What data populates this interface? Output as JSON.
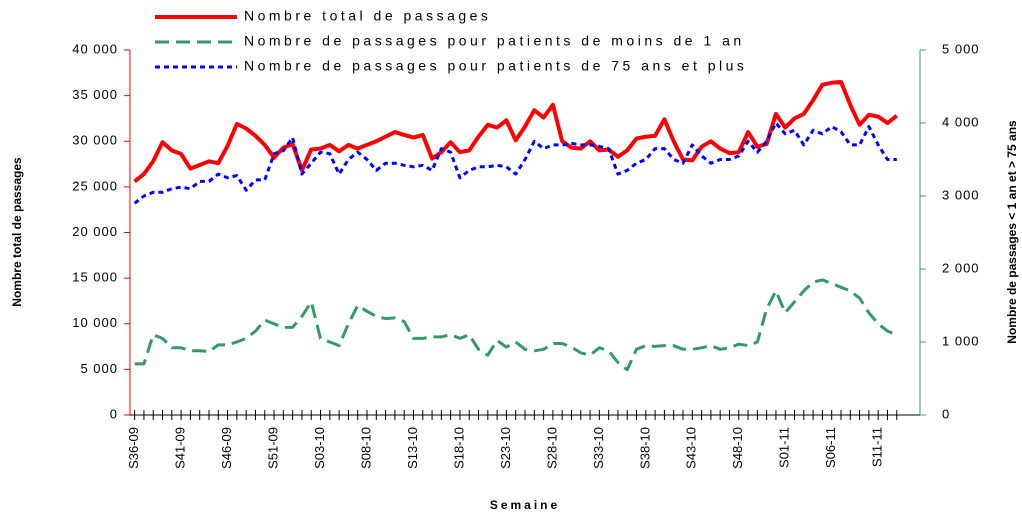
{
  "chart_data": {
    "type": "line",
    "ylabel": "Nombre total de passages",
    "y2label": "Nombre de passages < 1 an et > 75 ans",
    "xlabel": "Semaine",
    "categories": [
      "S36-09",
      null,
      null,
      null,
      null,
      "S41-09",
      null,
      null,
      null,
      null,
      "S46-09",
      null,
      null,
      null,
      null,
      "S51-09",
      null,
      null,
      null,
      null,
      "S03-10",
      null,
      null,
      null,
      null,
      "S08-10",
      null,
      null,
      null,
      null,
      "S13-10",
      null,
      null,
      null,
      null,
      "S18-10",
      null,
      null,
      null,
      null,
      "S23-10",
      null,
      null,
      null,
      null,
      "S28-10",
      null,
      null,
      null,
      null,
      "S33-10",
      null,
      null,
      null,
      null,
      "S38-10",
      null,
      null,
      null,
      null,
      "S43-10",
      null,
      null,
      null,
      null,
      "S48-10",
      null,
      null,
      null,
      null,
      "S01-11",
      null,
      null,
      null,
      null,
      "S06-11",
      null,
      null,
      null,
      null,
      "S11-11",
      null,
      null
    ],
    "series": [
      {
        "name": "Nombre total de passages",
        "color": "#ff0000",
        "axis": "y",
        "values": [
          25600,
          26400,
          27800,
          29900,
          29000,
          28600,
          27000,
          27400,
          27800,
          27600,
          29500,
          31900,
          31400,
          30600,
          29600,
          28200,
          29300,
          29700,
          26800,
          29100,
          29200,
          29600,
          28900,
          29600,
          29200,
          29600,
          30000,
          30500,
          31000,
          30700,
          30400,
          30700,
          28100,
          28800,
          29900,
          28800,
          29000,
          30500,
          31800,
          31500,
          32300,
          30100,
          31600,
          33400,
          32600,
          34000,
          30000,
          29300,
          29200,
          30000,
          29000,
          29100,
          28300,
          29000,
          30300,
          30500,
          30600,
          32400,
          30000,
          28000,
          27900,
          29400,
          30000,
          29200,
          28700,
          28800,
          31000,
          29400,
          29700,
          33000,
          31500,
          32500,
          33000,
          34500,
          36200,
          36400,
          36500,
          34000,
          31800,
          32900,
          32700,
          32000,
          32800
        ]
      },
      {
        "name": "Nombre de passages pour patients de moins de 1 an",
        "color": "#339966",
        "axis": "y2",
        "values": [
          700,
          700,
          1100,
          1050,
          920,
          920,
          880,
          880,
          870,
          960,
          960,
          1000,
          1050,
          1150,
          1300,
          1250,
          1200,
          1200,
          1350,
          1550,
          1050,
          1000,
          950,
          1250,
          1500,
          1420,
          1350,
          1320,
          1330,
          1280,
          1050,
          1050,
          1070,
          1070,
          1100,
          1050,
          1100,
          900,
          820,
          1020,
          930,
          1000,
          900,
          880,
          900,
          980,
          980,
          930,
          850,
          820,
          920,
          880,
          720,
          620,
          900,
          950,
          940,
          950,
          950,
          900,
          900,
          920,
          950,
          900,
          920,
          970,
          950,
          1000,
          1450,
          1700,
          1400,
          1550,
          1700,
          1820,
          1850,
          1800,
          1750,
          1700,
          1600,
          1400,
          1250,
          1150,
          1100
        ]
      },
      {
        "name": "Nombre de passages pour patients de 75 ans et plus",
        "color": "#0000ff",
        "axis": "y2",
        "values": [
          2900,
          3000,
          3050,
          3050,
          3100,
          3120,
          3100,
          3200,
          3200,
          3300,
          3250,
          3280,
          3080,
          3220,
          3220,
          3580,
          3620,
          3800,
          3300,
          3450,
          3600,
          3580,
          3300,
          3500,
          3600,
          3500,
          3350,
          3450,
          3450,
          3420,
          3400,
          3420,
          3350,
          3650,
          3600,
          3250,
          3350,
          3400,
          3400,
          3420,
          3400,
          3300,
          3500,
          3750,
          3650,
          3700,
          3700,
          3720,
          3700,
          3700,
          3680,
          3650,
          3300,
          3350,
          3450,
          3500,
          3650,
          3650,
          3500,
          3450,
          3700,
          3550,
          3450,
          3500,
          3500,
          3550,
          3750,
          3600,
          3750,
          4000,
          3850,
          3900,
          3700,
          3900,
          3850,
          3950,
          3880,
          3700,
          3700,
          3950,
          3700,
          3500,
          3500
        ]
      }
    ],
    "ylim": [
      0,
      40000
    ],
    "yticks": [
      0,
      {
        "value": 5000,
        "label": "5 000"
      },
      {
        "value": 10000,
        "label": "10 000"
      },
      {
        "value": 15000,
        "label": "15 000"
      },
      {
        "value": 20000,
        "label": "20 000"
      },
      {
        "value": 25000,
        "label": "25 000"
      },
      {
        "value": 30000,
        "label": "30 000"
      },
      {
        "value": 35000,
        "label": "35 000"
      },
      {
        "value": 40000,
        "label": "40 000"
      }
    ],
    "y2lim": [
      0,
      5000
    ],
    "y2ticks": [
      0,
      {
        "value": 1000,
        "label": "1 000"
      },
      {
        "value": 2000,
        "label": "2 000"
      },
      {
        "value": 3000,
        "label": "3 000"
      },
      {
        "value": 4000,
        "label": "4 000"
      },
      {
        "value": 5000,
        "label": "5 000"
      }
    ],
    "grid": false
  }
}
